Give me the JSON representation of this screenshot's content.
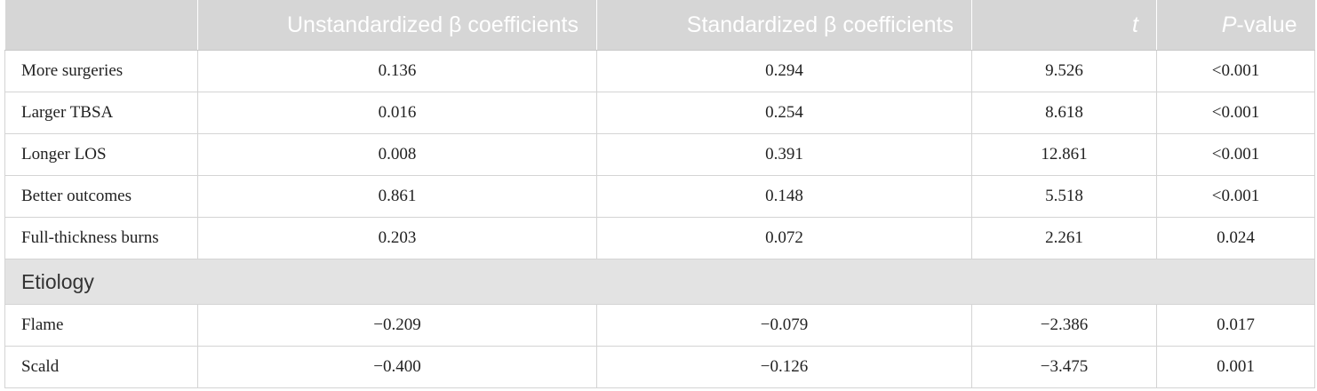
{
  "headers": [
    "",
    "Unstandardized β coefficients",
    "Standardized β coefficients",
    "t",
    "P-value"
  ],
  "rows": [
    [
      "More surgeries",
      "0.136",
      "0.294",
      "9.526",
      "<0.001"
    ],
    [
      "Larger TBSA",
      "0.016",
      "0.254",
      "8.618",
      "<0.001"
    ],
    [
      "Longer LOS",
      "0.008",
      "0.391",
      "12.861",
      "<0.001"
    ],
    [
      "Better outcomes",
      "0.861",
      "0.148",
      "5.518",
      "<0.001"
    ],
    [
      "Full-thickness burns",
      "0.203",
      "0.072",
      "2.261",
      "0.024"
    ]
  ],
  "section": "Etiology",
  "section_rows": [
    [
      "Flame",
      "−0.209",
      "−0.079",
      "−2.386",
      "0.017"
    ],
    [
      "Scald",
      "−0.400",
      "−0.126",
      "−3.475",
      "0.001"
    ]
  ]
}
